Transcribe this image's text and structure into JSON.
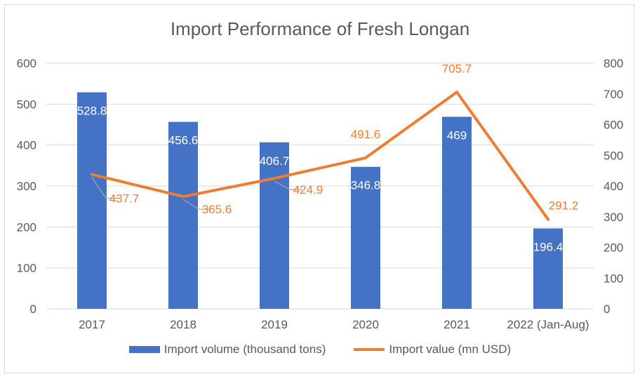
{
  "chart_data": {
    "type": "bar+line",
    "title": "Import Performance of Fresh Longan",
    "categories": [
      "2017",
      "2018",
      "2019",
      "2020",
      "2021",
      "2022 (Jan-Aug)"
    ],
    "series": [
      {
        "name": "Import volume (thousand tons)",
        "type": "bar",
        "axis": "left",
        "color": "#4472c4",
        "values": [
          528.8,
          456.6,
          406.7,
          346.8,
          469,
          196.4
        ],
        "labels": [
          "528.8",
          "456.6",
          "406.7",
          "346.8",
          "469",
          "196.4"
        ]
      },
      {
        "name": "Import value (mn USD)",
        "type": "line",
        "axis": "right",
        "color": "#ed7d31",
        "values": [
          437.7,
          365.6,
          424.9,
          491.6,
          705.7,
          291.2
        ],
        "labels": [
          "437.7",
          "365.6",
          "424.9",
          "491.6",
          "705.7",
          "291.2"
        ]
      }
    ],
    "y_left": {
      "min": 0,
      "max": 600,
      "ticks": [
        "0",
        "100",
        "200",
        "300",
        "400",
        "500",
        "600"
      ]
    },
    "y_right": {
      "min": 0,
      "max": 800,
      "ticks": [
        "0",
        "100",
        "200",
        "300",
        "400",
        "500",
        "600",
        "700",
        "800"
      ]
    },
    "grid": true,
    "legend_position": "bottom"
  }
}
